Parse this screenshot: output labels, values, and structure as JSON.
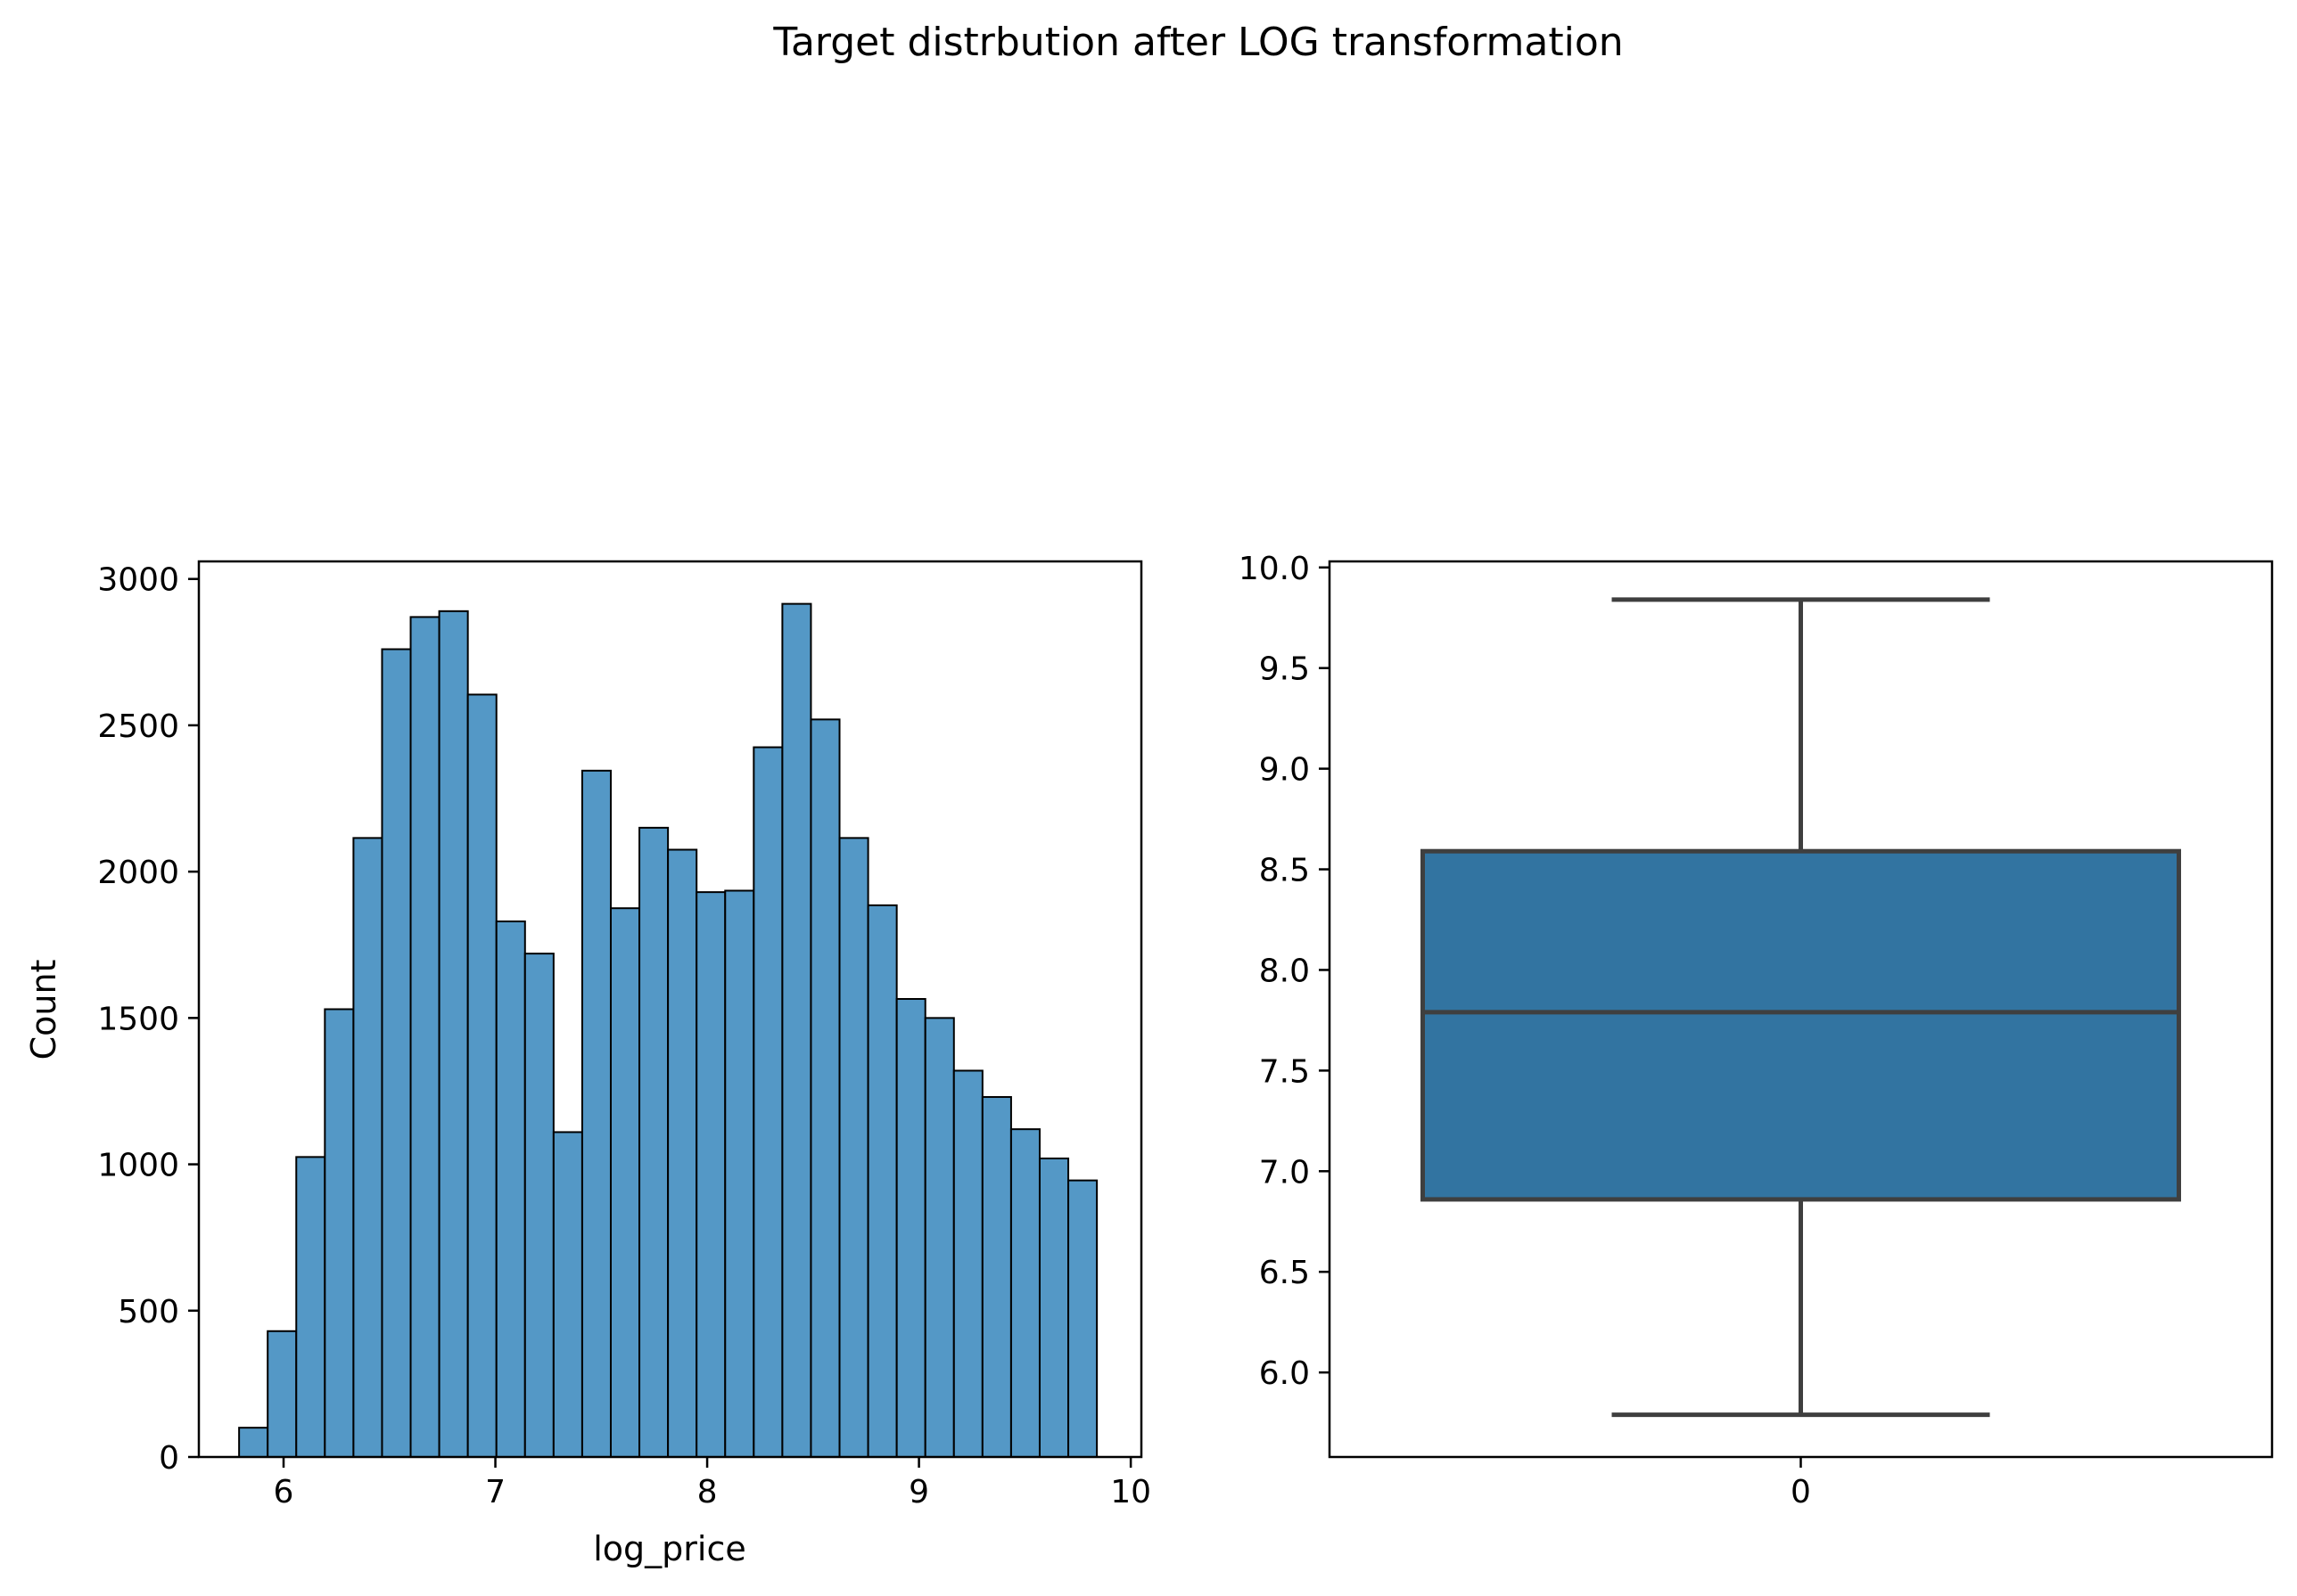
{
  "figure": {
    "suptitle": "Target distrbution after LOG transformation"
  },
  "chart_data": [
    {
      "type": "histogram",
      "xlabel": "log_price",
      "ylabel": "Count",
      "xlim": [
        5.6,
        10.05
      ],
      "ylim": [
        0,
        3060
      ],
      "xticks": [
        6,
        7,
        8,
        9,
        10
      ],
      "yticks": [
        0,
        500,
        1000,
        1500,
        2000,
        2500,
        3000
      ],
      "bin_edges": [
        5.79,
        5.925,
        6.06,
        6.195,
        6.33,
        6.465,
        6.6,
        6.735,
        6.87,
        7.005,
        7.14,
        7.275,
        7.41,
        7.545,
        7.68,
        7.815,
        7.95,
        8.085,
        8.22,
        8.355,
        8.49,
        8.625,
        8.76,
        8.895,
        9.03,
        9.165,
        9.3,
        9.435,
        9.57,
        9.705,
        9.84
      ],
      "counts": [
        100,
        430,
        1025,
        1530,
        2115,
        2760,
        2870,
        2890,
        2605,
        1830,
        1720,
        1110,
        2345,
        1875,
        2150,
        2075,
        1930,
        1935,
        2425,
        2915,
        2520,
        2115,
        1885,
        1565,
        1500,
        1320,
        1230,
        1120,
        1020,
        945
      ],
      "bar_color": "#5498c6",
      "edge_color": "#000000",
      "grid": false
    },
    {
      "type": "box",
      "categories": [
        "0"
      ],
      "ylim": [
        5.58,
        10.03
      ],
      "yticks": [
        "6.0",
        "6.5",
        "7.0",
        "7.5",
        "8.0",
        "8.5",
        "9.0",
        "9.5",
        "10.0"
      ],
      "whisker_low": 5.79,
      "q1": 6.86,
      "median": 7.79,
      "q3": 8.59,
      "whisker_high": 9.84,
      "box_color": "#3274a1",
      "line_color": "#3f3f3f",
      "grid": false
    }
  ]
}
